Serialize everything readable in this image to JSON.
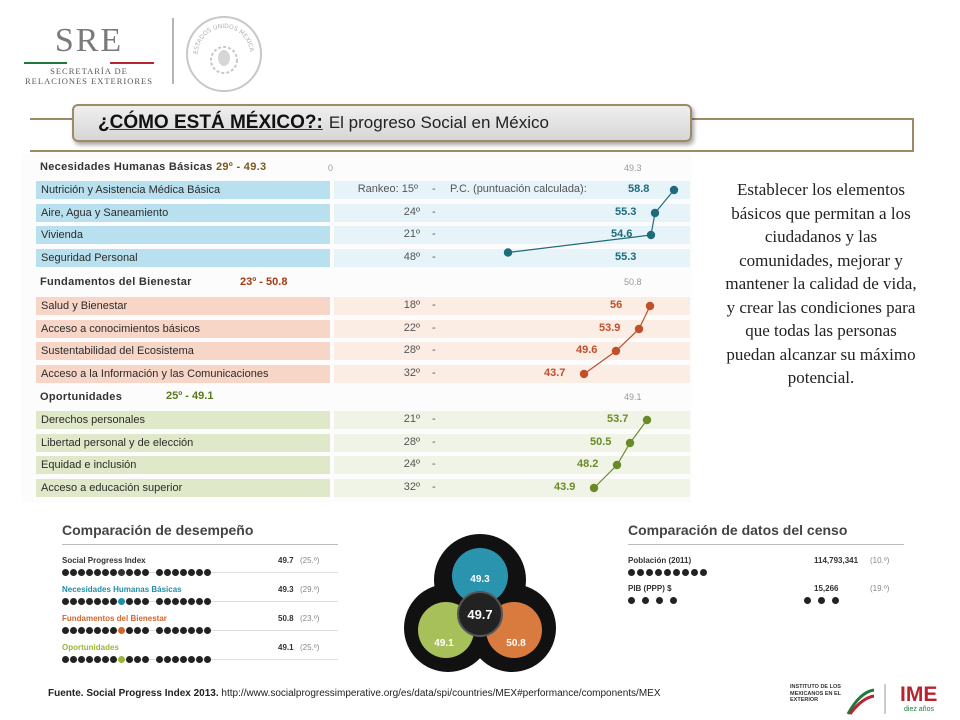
{
  "header": {
    "sre_logo": "SRE",
    "sre_line1": "SECRETARÍA DE",
    "sre_line2": "RELACIONES EXTERIORES",
    "seal": "ESTADOS UNIDOS MEXICANOS"
  },
  "title": {
    "strong": "¿CÓMO ESTÁ MÉXICO?:",
    "rest": "El progreso Social en México"
  },
  "panel": {
    "zero": "0",
    "sections": [
      {
        "name": "Necesidades Humanas Básicas",
        "score": "29º - 49.3",
        "ref": "49.3",
        "color": "#1e6b7b",
        "rows": [
          {
            "label": "Nutrición y Asistencia Médica Básica",
            "rank": "Rankeo: 15º",
            "dash": "-",
            "extra": "P.C. (puntuación calculada):",
            "value": "58.8"
          },
          {
            "label": "Aire, Agua y Saneamiento",
            "rank": "24º",
            "dash": "-",
            "value": "55.3"
          },
          {
            "label": "Vivienda",
            "rank": "21º",
            "dash": "-",
            "value": "54.6"
          },
          {
            "label": "Seguridad Personal",
            "rank": "48º",
            "dash": "-",
            "value": "55.3"
          }
        ]
      },
      {
        "name": "Fundamentos del Bienestar",
        "score": "23º - 50.8",
        "ref": "50.8",
        "color": "#c0502a",
        "rows": [
          {
            "label": "Salud y Bienestar",
            "rank": "18º",
            "dash": "-",
            "value": "56"
          },
          {
            "label": "Acceso a conocimientos básicos",
            "rank": "22º",
            "dash": "-",
            "value": "53.9"
          },
          {
            "label": "Sustentabilidad del Ecosistema",
            "rank": "28º",
            "dash": "-",
            "value": "49.6"
          },
          {
            "label": "Acceso a la Información y las Comunicaciones",
            "rank": "32º",
            "dash": "-",
            "value": "43.7"
          }
        ]
      },
      {
        "name": "Oportunidades",
        "score": "25º - 49.1",
        "ref": "49.1",
        "color": "#6a8a2a",
        "rows": [
          {
            "label": "Derechos personales",
            "rank": "21º",
            "dash": "-",
            "value": "53.7"
          },
          {
            "label": "Libertad personal y de elección",
            "rank": "28º",
            "dash": "-",
            "value": "50.5"
          },
          {
            "label": "Equidad e inclusión",
            "rank": "24º",
            "dash": "-",
            "value": "48.2"
          },
          {
            "label": "Acceso a educación superior",
            "rank": "32º",
            "dash": "-",
            "value": "43.9"
          }
        ]
      }
    ]
  },
  "description": "Establecer los elementos básicos que permitan a los ciudadanos y las comunidades, mejorar y mantener la calidad de vida, y crear las condiciones para que todas las personas puedan alcanzar su máximo potencial.",
  "performance": {
    "title": "Comparación de desempeño",
    "rows": [
      {
        "label": "Social Progress Index",
        "value": "49.7",
        "rank": "(25.º)",
        "color": "#333333"
      },
      {
        "label": "Necesidades Humanas Básicas",
        "value": "49.3",
        "rank": "(29.º)",
        "color": "#1f8fa8"
      },
      {
        "label": "Fundamentos del Bienestar",
        "value": "50.8",
        "rank": "(23.º)",
        "color": "#d2642c"
      },
      {
        "label": "Oportunidades",
        "value": "49.1",
        "rank": "(25.º)",
        "color": "#9ab53a"
      }
    ]
  },
  "circles": {
    "center": "49.7",
    "top": "49.3",
    "left": "49.1",
    "right": "50.8",
    "colors": {
      "top": "#2a93ad",
      "left": "#a8c05a",
      "right": "#d97a3e",
      "center": "#222222"
    }
  },
  "census": {
    "title": "Comparación de datos del censo",
    "rows": [
      {
        "label": "Población (2011)",
        "value": "114,793,341",
        "rank": "(10.º)"
      },
      {
        "label": "PIB (PPP) $",
        "value": "15,266",
        "rank": "(19.º)"
      }
    ]
  },
  "footer": {
    "source_bold": "Fuente. Social Progress Index 2013.",
    "url": "http://www.socialprogressimperative.org/es/data/spi/countries/MEX#performance/components/MEX",
    "ime_small": "INSTITUTO DE LOS MEXICANOS EN EL EXTERIOR",
    "ime_big": "IME",
    "ime_sub": "diez años"
  }
}
